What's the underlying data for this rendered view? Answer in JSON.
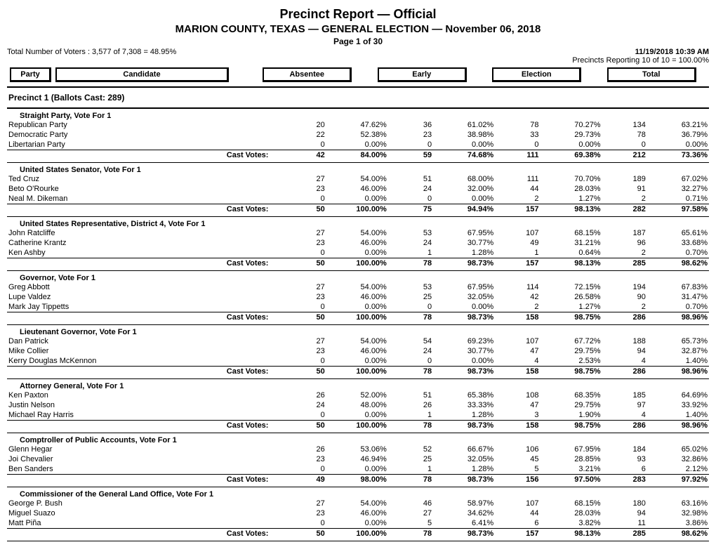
{
  "header": {
    "title": "Precinct Report  —  Official",
    "subtitle": "MARION COUNTY, TEXAS  —  GENERAL ELECTION  —  November 06, 2018",
    "page": "Page 1 of 30",
    "timestamp": "11/19/2018 10:39 AM",
    "voters": "Total Number of Voters : 3,577 of 7,308 = 48.95%",
    "precincts": "Precincts Reporting 10 of 10 = 100.00%",
    "col_party": "Party",
    "col_candidate": "Candidate",
    "col_absentee": "Absentee",
    "col_early": "Early",
    "col_election": "Election",
    "col_total": "Total"
  },
  "precinct": "Precinct 1  (Ballots Cast: 289)",
  "cast_votes_label": "Cast Votes:",
  "races": [
    {
      "title": "Straight Party, Vote For 1",
      "rows": [
        {
          "cand": "Republican Party",
          "a_n": "20",
          "a_p": "47.62%",
          "e_n": "36",
          "e_p": "61.02%",
          "el_n": "78",
          "el_p": "70.27%",
          "t_n": "134",
          "t_p": "63.21%"
        },
        {
          "cand": "Democratic Party",
          "a_n": "22",
          "a_p": "52.38%",
          "e_n": "23",
          "e_p": "38.98%",
          "el_n": "33",
          "el_p": "29.73%",
          "t_n": "78",
          "t_p": "36.79%"
        },
        {
          "cand": "Libertarian Party",
          "a_n": "0",
          "a_p": "0.00%",
          "e_n": "0",
          "e_p": "0.00%",
          "el_n": "0",
          "el_p": "0.00%",
          "t_n": "0",
          "t_p": "0.00%"
        }
      ],
      "cast": {
        "a_n": "42",
        "a_p": "84.00%",
        "e_n": "59",
        "e_p": "74.68%",
        "el_n": "111",
        "el_p": "69.38%",
        "t_n": "212",
        "t_p": "73.36%"
      }
    },
    {
      "title": "United States Senator, Vote For 1",
      "rows": [
        {
          "cand": "Ted Cruz",
          "a_n": "27",
          "a_p": "54.00%",
          "e_n": "51",
          "e_p": "68.00%",
          "el_n": "111",
          "el_p": "70.70%",
          "t_n": "189",
          "t_p": "67.02%"
        },
        {
          "cand": "Beto O'Rourke",
          "a_n": "23",
          "a_p": "46.00%",
          "e_n": "24",
          "e_p": "32.00%",
          "el_n": "44",
          "el_p": "28.03%",
          "t_n": "91",
          "t_p": "32.27%"
        },
        {
          "cand": "Neal M. Dikeman",
          "a_n": "0",
          "a_p": "0.00%",
          "e_n": "0",
          "e_p": "0.00%",
          "el_n": "2",
          "el_p": "1.27%",
          "t_n": "2",
          "t_p": "0.71%"
        }
      ],
      "cast": {
        "a_n": "50",
        "a_p": "100.00%",
        "e_n": "75",
        "e_p": "94.94%",
        "el_n": "157",
        "el_p": "98.13%",
        "t_n": "282",
        "t_p": "97.58%"
      }
    },
    {
      "title": "United States Representative, District 4, Vote For 1",
      "rows": [
        {
          "cand": "John Ratcliffe",
          "a_n": "27",
          "a_p": "54.00%",
          "e_n": "53",
          "e_p": "67.95%",
          "el_n": "107",
          "el_p": "68.15%",
          "t_n": "187",
          "t_p": "65.61%"
        },
        {
          "cand": "Catherine Krantz",
          "a_n": "23",
          "a_p": "46.00%",
          "e_n": "24",
          "e_p": "30.77%",
          "el_n": "49",
          "el_p": "31.21%",
          "t_n": "96",
          "t_p": "33.68%"
        },
        {
          "cand": "Ken Ashby",
          "a_n": "0",
          "a_p": "0.00%",
          "e_n": "1",
          "e_p": "1.28%",
          "el_n": "1",
          "el_p": "0.64%",
          "t_n": "2",
          "t_p": "0.70%"
        }
      ],
      "cast": {
        "a_n": "50",
        "a_p": "100.00%",
        "e_n": "78",
        "e_p": "98.73%",
        "el_n": "157",
        "el_p": "98.13%",
        "t_n": "285",
        "t_p": "98.62%"
      }
    },
    {
      "title": "Governor, Vote For 1",
      "rows": [
        {
          "cand": "Greg Abbott",
          "a_n": "27",
          "a_p": "54.00%",
          "e_n": "53",
          "e_p": "67.95%",
          "el_n": "114",
          "el_p": "72.15%",
          "t_n": "194",
          "t_p": "67.83%"
        },
        {
          "cand": "Lupe Valdez",
          "a_n": "23",
          "a_p": "46.00%",
          "e_n": "25",
          "e_p": "32.05%",
          "el_n": "42",
          "el_p": "26.58%",
          "t_n": "90",
          "t_p": "31.47%"
        },
        {
          "cand": "Mark Jay Tippetts",
          "a_n": "0",
          "a_p": "0.00%",
          "e_n": "0",
          "e_p": "0.00%",
          "el_n": "2",
          "el_p": "1.27%",
          "t_n": "2",
          "t_p": "0.70%"
        }
      ],
      "cast": {
        "a_n": "50",
        "a_p": "100.00%",
        "e_n": "78",
        "e_p": "98.73%",
        "el_n": "158",
        "el_p": "98.75%",
        "t_n": "286",
        "t_p": "98.96%"
      }
    },
    {
      "title": "Lieutenant Governor, Vote For 1",
      "rows": [
        {
          "cand": "Dan Patrick",
          "a_n": "27",
          "a_p": "54.00%",
          "e_n": "54",
          "e_p": "69.23%",
          "el_n": "107",
          "el_p": "67.72%",
          "t_n": "188",
          "t_p": "65.73%"
        },
        {
          "cand": "Mike Collier",
          "a_n": "23",
          "a_p": "46.00%",
          "e_n": "24",
          "e_p": "30.77%",
          "el_n": "47",
          "el_p": "29.75%",
          "t_n": "94",
          "t_p": "32.87%"
        },
        {
          "cand": "Kerry Douglas McKennon",
          "a_n": "0",
          "a_p": "0.00%",
          "e_n": "0",
          "e_p": "0.00%",
          "el_n": "4",
          "el_p": "2.53%",
          "t_n": "4",
          "t_p": "1.40%"
        }
      ],
      "cast": {
        "a_n": "50",
        "a_p": "100.00%",
        "e_n": "78",
        "e_p": "98.73%",
        "el_n": "158",
        "el_p": "98.75%",
        "t_n": "286",
        "t_p": "98.96%"
      }
    },
    {
      "title": "Attorney General, Vote For 1",
      "rows": [
        {
          "cand": "Ken Paxton",
          "a_n": "26",
          "a_p": "52.00%",
          "e_n": "51",
          "e_p": "65.38%",
          "el_n": "108",
          "el_p": "68.35%",
          "t_n": "185",
          "t_p": "64.69%"
        },
        {
          "cand": "Justin Nelson",
          "a_n": "24",
          "a_p": "48.00%",
          "e_n": "26",
          "e_p": "33.33%",
          "el_n": "47",
          "el_p": "29.75%",
          "t_n": "97",
          "t_p": "33.92%"
        },
        {
          "cand": "Michael Ray Harris",
          "a_n": "0",
          "a_p": "0.00%",
          "e_n": "1",
          "e_p": "1.28%",
          "el_n": "3",
          "el_p": "1.90%",
          "t_n": "4",
          "t_p": "1.40%"
        }
      ],
      "cast": {
        "a_n": "50",
        "a_p": "100.00%",
        "e_n": "78",
        "e_p": "98.73%",
        "el_n": "158",
        "el_p": "98.75%",
        "t_n": "286",
        "t_p": "98.96%"
      }
    },
    {
      "title": "Comptroller of Public Accounts, Vote For 1",
      "rows": [
        {
          "cand": "Glenn Hegar",
          "a_n": "26",
          "a_p": "53.06%",
          "e_n": "52",
          "e_p": "66.67%",
          "el_n": "106",
          "el_p": "67.95%",
          "t_n": "184",
          "t_p": "65.02%"
        },
        {
          "cand": "Joi Chevalier",
          "a_n": "23",
          "a_p": "46.94%",
          "e_n": "25",
          "e_p": "32.05%",
          "el_n": "45",
          "el_p": "28.85%",
          "t_n": "93",
          "t_p": "32.86%"
        },
        {
          "cand": "Ben Sanders",
          "a_n": "0",
          "a_p": "0.00%",
          "e_n": "1",
          "e_p": "1.28%",
          "el_n": "5",
          "el_p": "3.21%",
          "t_n": "6",
          "t_p": "2.12%"
        }
      ],
      "cast": {
        "a_n": "49",
        "a_p": "98.00%",
        "e_n": "78",
        "e_p": "98.73%",
        "el_n": "156",
        "el_p": "97.50%",
        "t_n": "283",
        "t_p": "97.92%"
      }
    },
    {
      "title": "Commissioner of the General Land Office, Vote For 1",
      "rows": [
        {
          "cand": "George P. Bush",
          "a_n": "27",
          "a_p": "54.00%",
          "e_n": "46",
          "e_p": "58.97%",
          "el_n": "107",
          "el_p": "68.15%",
          "t_n": "180",
          "t_p": "63.16%"
        },
        {
          "cand": "Miguel Suazo",
          "a_n": "23",
          "a_p": "46.00%",
          "e_n": "27",
          "e_p": "34.62%",
          "el_n": "44",
          "el_p": "28.03%",
          "t_n": "94",
          "t_p": "32.98%"
        },
        {
          "cand": "Matt Piña",
          "a_n": "0",
          "a_p": "0.00%",
          "e_n": "5",
          "e_p": "6.41%",
          "el_n": "6",
          "el_p": "3.82%",
          "t_n": "11",
          "t_p": "3.86%"
        }
      ],
      "cast": {
        "a_n": "50",
        "a_p": "100.00%",
        "e_n": "78",
        "e_p": "98.73%",
        "el_n": "157",
        "el_p": "98.13%",
        "t_n": "285",
        "t_p": "98.62%"
      }
    }
  ]
}
